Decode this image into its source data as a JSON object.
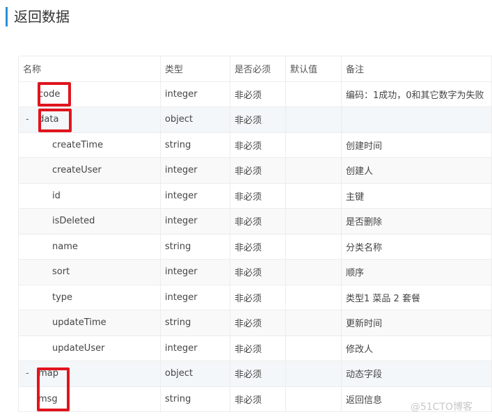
{
  "title": "返回数据",
  "columns": [
    "名称",
    "类型",
    "是否必须",
    "默认值",
    "备注"
  ],
  "rows": [
    {
      "name": "code",
      "type": "integer",
      "required": "非必须",
      "default": "",
      "note": "编码：1成功，0和其它数字为失败",
      "level": 0,
      "toggle": ""
    },
    {
      "name": "data",
      "type": "object",
      "required": "非必须",
      "default": "",
      "note": "",
      "level": 0,
      "toggle": "-"
    },
    {
      "name": "createTime",
      "type": "string",
      "required": "非必须",
      "default": "",
      "note": "创建时间",
      "level": 1,
      "toggle": ""
    },
    {
      "name": "createUser",
      "type": "integer",
      "required": "非必须",
      "default": "",
      "note": "创建人",
      "level": 1,
      "toggle": ""
    },
    {
      "name": "id",
      "type": "integer",
      "required": "非必须",
      "default": "",
      "note": "主键",
      "level": 1,
      "toggle": ""
    },
    {
      "name": "isDeleted",
      "type": "integer",
      "required": "非必须",
      "default": "",
      "note": "是否删除",
      "level": 1,
      "toggle": ""
    },
    {
      "name": "name",
      "type": "string",
      "required": "非必须",
      "default": "",
      "note": "分类名称",
      "level": 1,
      "toggle": ""
    },
    {
      "name": "sort",
      "type": "integer",
      "required": "非必须",
      "default": "",
      "note": "顺序",
      "level": 1,
      "toggle": ""
    },
    {
      "name": "type",
      "type": "integer",
      "required": "非必须",
      "default": "",
      "note": "类型1 菜品 2 套餐",
      "level": 1,
      "toggle": ""
    },
    {
      "name": "updateTime",
      "type": "string",
      "required": "非必须",
      "default": "",
      "note": "更新时间",
      "level": 1,
      "toggle": ""
    },
    {
      "name": "updateUser",
      "type": "integer",
      "required": "非必须",
      "default": "",
      "note": "修改人",
      "level": 1,
      "toggle": ""
    },
    {
      "name": "map",
      "type": "object",
      "required": "非必须",
      "default": "",
      "note": "动态字段",
      "level": 0,
      "toggle": "-"
    },
    {
      "name": "msg",
      "type": "string",
      "required": "非必须",
      "default": "",
      "note": "返回信息",
      "level": 0,
      "toggle": ""
    }
  ],
  "watermark": "@51CTO博客",
  "highlight_color": "#e0141e",
  "accent_color": "#2b8fd6"
}
